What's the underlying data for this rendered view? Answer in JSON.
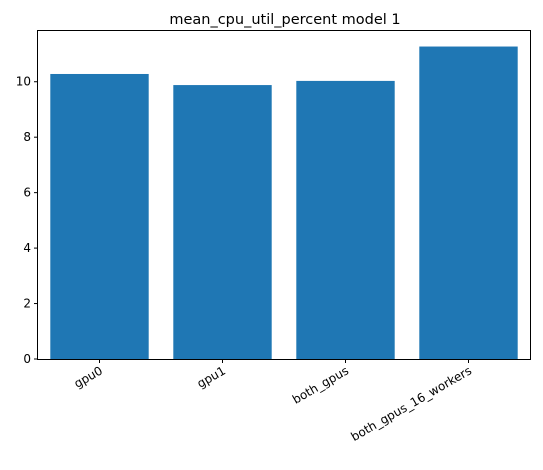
{
  "chart_data": {
    "type": "bar",
    "title": "mean_cpu_util_percent model 1",
    "xlabel": "",
    "ylabel": "",
    "categories": [
      "gpu0",
      "gpu1",
      "both_gpus",
      "both_gpus_16_workers"
    ],
    "values": [
      10.28,
      9.88,
      10.03,
      11.27
    ],
    "ylim": [
      0,
      11.83
    ],
    "yticks": [
      0,
      2,
      4,
      6,
      8,
      10
    ],
    "ytick_labels": [
      "0",
      "2",
      "4",
      "6",
      "8",
      "10"
    ],
    "bar_color": "#1f77b4",
    "grid": false,
    "legend": "none"
  }
}
